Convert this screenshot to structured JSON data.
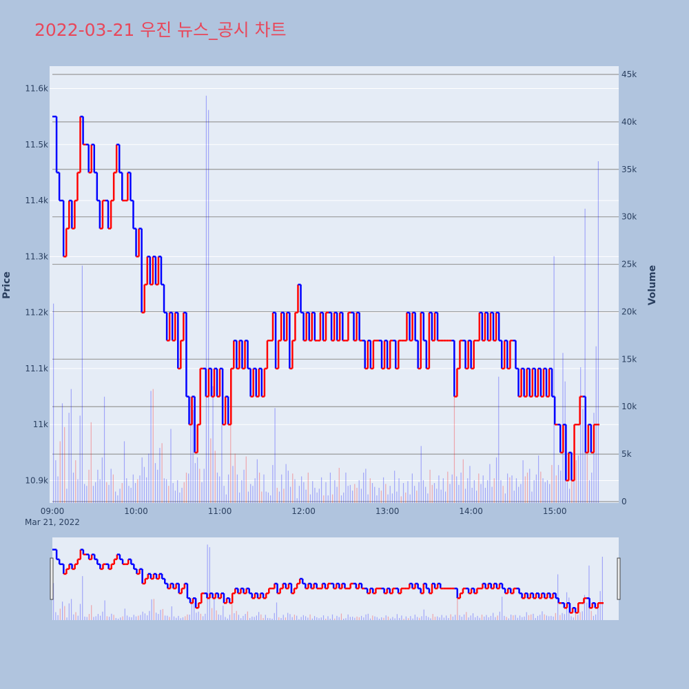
{
  "title": "2022-03-21 우진 뉴스_공시 차트",
  "colors": {
    "page_bg": "#b0c4de",
    "plot_bg": "#e5ecf6",
    "up": "#ff0000",
    "down": "#0000ff",
    "title": "#e8475a",
    "grid": "#ffffff",
    "volume_grid": "#999999"
  },
  "chart_data": {
    "type": "candlestick+volume",
    "title": "2022-03-21 우진 뉴스_공시 차트",
    "ylabel": "Price",
    "y2label": "Volume",
    "date_label": "Mar 21, 2022",
    "x_ticks": [
      "09:00",
      "10:00",
      "11:00",
      "12:00",
      "13:00",
      "14:00",
      "15:00"
    ],
    "x_range_minutes": [
      0,
      392
    ],
    "y_ticks": [
      "10.9k",
      "11k",
      "11.1k",
      "11.2k",
      "11.3k",
      "11.4k",
      "11.5k",
      "11.6k"
    ],
    "y_tick_values": [
      10900,
      11000,
      11100,
      11200,
      11300,
      11400,
      11500,
      11600
    ],
    "y_range": [
      10860,
      11640
    ],
    "y2_ticks": [
      "0",
      "5k",
      "10k",
      "15k",
      "20k",
      "25k",
      "30k",
      "35k",
      "40k",
      "45k"
    ],
    "y2_tick_values": [
      0,
      5000,
      10000,
      15000,
      20000,
      25000,
      30000,
      35000,
      40000,
      45000
    ],
    "y2_range": [
      0,
      45000
    ],
    "series": [
      {
        "name": "price",
        "kind": "candlestick"
      },
      {
        "name": "volume",
        "kind": "bar"
      }
    ],
    "price_path": [
      [
        0,
        11550
      ],
      [
        3,
        11450
      ],
      [
        5,
        11400
      ],
      [
        8,
        11300
      ],
      [
        10,
        11350
      ],
      [
        12,
        11400
      ],
      [
        14,
        11350
      ],
      [
        16,
        11400
      ],
      [
        18,
        11450
      ],
      [
        20,
        11550
      ],
      [
        22,
        11500
      ],
      [
        24,
        11500
      ],
      [
        26,
        11450
      ],
      [
        28,
        11500
      ],
      [
        30,
        11450
      ],
      [
        32,
        11400
      ],
      [
        34,
        11350
      ],
      [
        36,
        11400
      ],
      [
        38,
        11400
      ],
      [
        40,
        11350
      ],
      [
        42,
        11400
      ],
      [
        44,
        11450
      ],
      [
        46,
        11500
      ],
      [
        48,
        11450
      ],
      [
        50,
        11400
      ],
      [
        52,
        11400
      ],
      [
        54,
        11450
      ],
      [
        56,
        11400
      ],
      [
        58,
        11350
      ],
      [
        60,
        11300
      ],
      [
        62,
        11350
      ],
      [
        64,
        11200
      ],
      [
        66,
        11250
      ],
      [
        68,
        11300
      ],
      [
        70,
        11250
      ],
      [
        72,
        11300
      ],
      [
        74,
        11250
      ],
      [
        76,
        11300
      ],
      [
        78,
        11250
      ],
      [
        80,
        11200
      ],
      [
        82,
        11150
      ],
      [
        84,
        11200
      ],
      [
        86,
        11150
      ],
      [
        88,
        11200
      ],
      [
        90,
        11100
      ],
      [
        92,
        11150
      ],
      [
        94,
        11200
      ],
      [
        96,
        11050
      ],
      [
        98,
        11000
      ],
      [
        100,
        11050
      ],
      [
        102,
        10950
      ],
      [
        104,
        11000
      ],
      [
        106,
        11100
      ],
      [
        108,
        11100
      ],
      [
        110,
        11050
      ],
      [
        112,
        11100
      ],
      [
        114,
        11050
      ],
      [
        116,
        11100
      ],
      [
        118,
        11050
      ],
      [
        120,
        11100
      ],
      [
        122,
        11000
      ],
      [
        124,
        11050
      ],
      [
        126,
        11000
      ],
      [
        128,
        11100
      ],
      [
        130,
        11150
      ],
      [
        132,
        11100
      ],
      [
        134,
        11150
      ],
      [
        136,
        11100
      ],
      [
        138,
        11150
      ],
      [
        140,
        11100
      ],
      [
        142,
        11050
      ],
      [
        144,
        11100
      ],
      [
        146,
        11050
      ],
      [
        148,
        11100
      ],
      [
        150,
        11050
      ],
      [
        152,
        11100
      ],
      [
        154,
        11150
      ],
      [
        156,
        11150
      ],
      [
        158,
        11200
      ],
      [
        160,
        11100
      ],
      [
        162,
        11150
      ],
      [
        164,
        11200
      ],
      [
        166,
        11150
      ],
      [
        168,
        11200
      ],
      [
        170,
        11100
      ],
      [
        172,
        11150
      ],
      [
        174,
        11200
      ],
      [
        176,
        11250
      ],
      [
        178,
        11200
      ],
      [
        180,
        11150
      ],
      [
        182,
        11200
      ],
      [
        184,
        11150
      ],
      [
        186,
        11200
      ],
      [
        188,
        11150
      ],
      [
        190,
        11150
      ],
      [
        192,
        11200
      ],
      [
        194,
        11150
      ],
      [
        196,
        11200
      ],
      [
        198,
        11200
      ],
      [
        200,
        11150
      ],
      [
        202,
        11200
      ],
      [
        204,
        11150
      ],
      [
        206,
        11200
      ],
      [
        208,
        11150
      ],
      [
        210,
        11150
      ],
      [
        212,
        11200
      ],
      [
        214,
        11200
      ],
      [
        216,
        11150
      ],
      [
        218,
        11200
      ],
      [
        220,
        11150
      ],
      [
        222,
        11150
      ],
      [
        224,
        11100
      ],
      [
        226,
        11150
      ],
      [
        228,
        11100
      ],
      [
        230,
        11150
      ],
      [
        232,
        11150
      ],
      [
        234,
        11150
      ],
      [
        236,
        11100
      ],
      [
        238,
        11150
      ],
      [
        240,
        11100
      ],
      [
        242,
        11150
      ],
      [
        244,
        11150
      ],
      [
        246,
        11100
      ],
      [
        248,
        11150
      ],
      [
        250,
        11150
      ],
      [
        252,
        11150
      ],
      [
        254,
        11200
      ],
      [
        256,
        11150
      ],
      [
        258,
        11200
      ],
      [
        260,
        11150
      ],
      [
        262,
        11100
      ],
      [
        264,
        11200
      ],
      [
        266,
        11150
      ],
      [
        268,
        11100
      ],
      [
        270,
        11200
      ],
      [
        272,
        11150
      ],
      [
        274,
        11200
      ],
      [
        276,
        11150
      ],
      [
        278,
        11150
      ],
      [
        280,
        11150
      ],
      [
        282,
        11150
      ],
      [
        284,
        11150
      ],
      [
        286,
        11150
      ],
      [
        288,
        11050
      ],
      [
        290,
        11100
      ],
      [
        292,
        11150
      ],
      [
        294,
        11150
      ],
      [
        296,
        11100
      ],
      [
        298,
        11150
      ],
      [
        300,
        11100
      ],
      [
        302,
        11150
      ],
      [
        304,
        11150
      ],
      [
        306,
        11200
      ],
      [
        308,
        11150
      ],
      [
        310,
        11200
      ],
      [
        312,
        11150
      ],
      [
        314,
        11200
      ],
      [
        316,
        11150
      ],
      [
        318,
        11200
      ],
      [
        320,
        11150
      ],
      [
        322,
        11100
      ],
      [
        324,
        11150
      ],
      [
        326,
        11100
      ],
      [
        328,
        11150
      ],
      [
        330,
        11150
      ],
      [
        332,
        11100
      ],
      [
        334,
        11050
      ],
      [
        336,
        11100
      ],
      [
        338,
        11050
      ],
      [
        340,
        11100
      ],
      [
        342,
        11050
      ],
      [
        344,
        11100
      ],
      [
        346,
        11050
      ],
      [
        348,
        11100
      ],
      [
        350,
        11050
      ],
      [
        352,
        11100
      ],
      [
        354,
        11050
      ],
      [
        356,
        11100
      ],
      [
        358,
        11050
      ],
      [
        360,
        11000
      ],
      [
        362,
        11000
      ],
      [
        364,
        10950
      ],
      [
        366,
        11000
      ],
      [
        368,
        10900
      ],
      [
        370,
        10950
      ],
      [
        372,
        10900
      ],
      [
        374,
        11000
      ],
      [
        376,
        11000
      ],
      [
        378,
        11050
      ],
      [
        380,
        11050
      ],
      [
        382,
        10950
      ],
      [
        384,
        11000
      ],
      [
        386,
        10950
      ],
      [
        388,
        11000
      ],
      [
        392,
        11000
      ]
    ],
    "volume_values": [
      21000,
      4500,
      2800,
      6500,
      10500,
      8000,
      1500,
      9500,
      12000,
      3200,
      4500,
      2500,
      9200,
      25000,
      2000,
      1800,
      3500,
      8500,
      1800,
      2200,
      3500,
      2500,
      4800,
      11200,
      2200,
      1900,
      3600,
      3000,
      1200,
      800,
      1500,
      2100,
      6500,
      2600,
      1800,
      1600,
      3000,
      2100,
      2500,
      2900,
      4800,
      3800,
      2700,
      5200,
      11800,
      12000,
      4200,
      3500,
      5800,
      6300,
      2600,
      2500,
      1800,
      7800,
      2100,
      1300,
      2400,
      1100,
      1600,
      2200,
      3200,
      3100,
      11200,
      9800,
      4200,
      4800,
      3600,
      2200,
      3600,
      42900,
      41400,
      6800,
      12300,
      5500,
      3200,
      2800,
      8200,
      1800,
      900,
      3000,
      8800,
      3900,
      5200,
      3000,
      1100,
      2400,
      3500,
      4900,
      1200,
      2000,
      1800,
      2600,
      4600,
      3200,
      1200,
      3000,
      1200,
      1100,
      800,
      4000,
      10000,
      1600,
      1200,
      3000,
      1500,
      4100,
      3400,
      1700,
      3100,
      2500,
      500,
      1800,
      2800,
      2200,
      1400,
      3200,
      900,
      2300,
      1600,
      1100,
      1500,
      2700,
      800,
      2200,
      800,
      3200,
      900,
      2400,
      1700,
      3700,
      800,
      1100,
      3200,
      1800,
      1900,
      1300,
      2000,
      1600,
      2400,
      1500,
      3200,
      3600,
      900,
      2600,
      2100,
      1700,
      800,
      1600,
      1300,
      2700,
      2000,
      900,
      1800,
      1000,
      3400,
      1200,
      2600,
      700,
      2100,
      1100,
      2300,
      900,
      3100,
      1800,
      1300,
      2200,
      6000,
      2400,
      1700,
      1000,
      3500,
      1900,
      2100,
      1500,
      2900,
      1400,
      2600,
      1200,
      3300,
      2000,
      3000,
      12000,
      2800,
      1900,
      3200,
      4600,
      1500,
      2600,
      3900,
      1600,
      2400,
      1300,
      3100,
      2000,
      2900,
      1600,
      2400,
      4100,
      1700,
      2600,
      4800,
      13300,
      2400,
      1800,
      1000,
      3100,
      2700,
      2900,
      1300,
      2600,
      1700,
      2000,
      4500,
      2800,
      3200,
      3600,
      1200,
      2400,
      3000,
      5000,
      3300,
      2600,
      2200,
      2400,
      2000,
      4000,
      26000,
      2900,
      4000,
      3400,
      15800,
      12800,
      2200,
      1500,
      3600,
      3000,
      4500,
      5000,
      14300,
      9900,
      31000,
      5200,
      2400,
      3200,
      9500,
      16500,
      36000
    ]
  }
}
